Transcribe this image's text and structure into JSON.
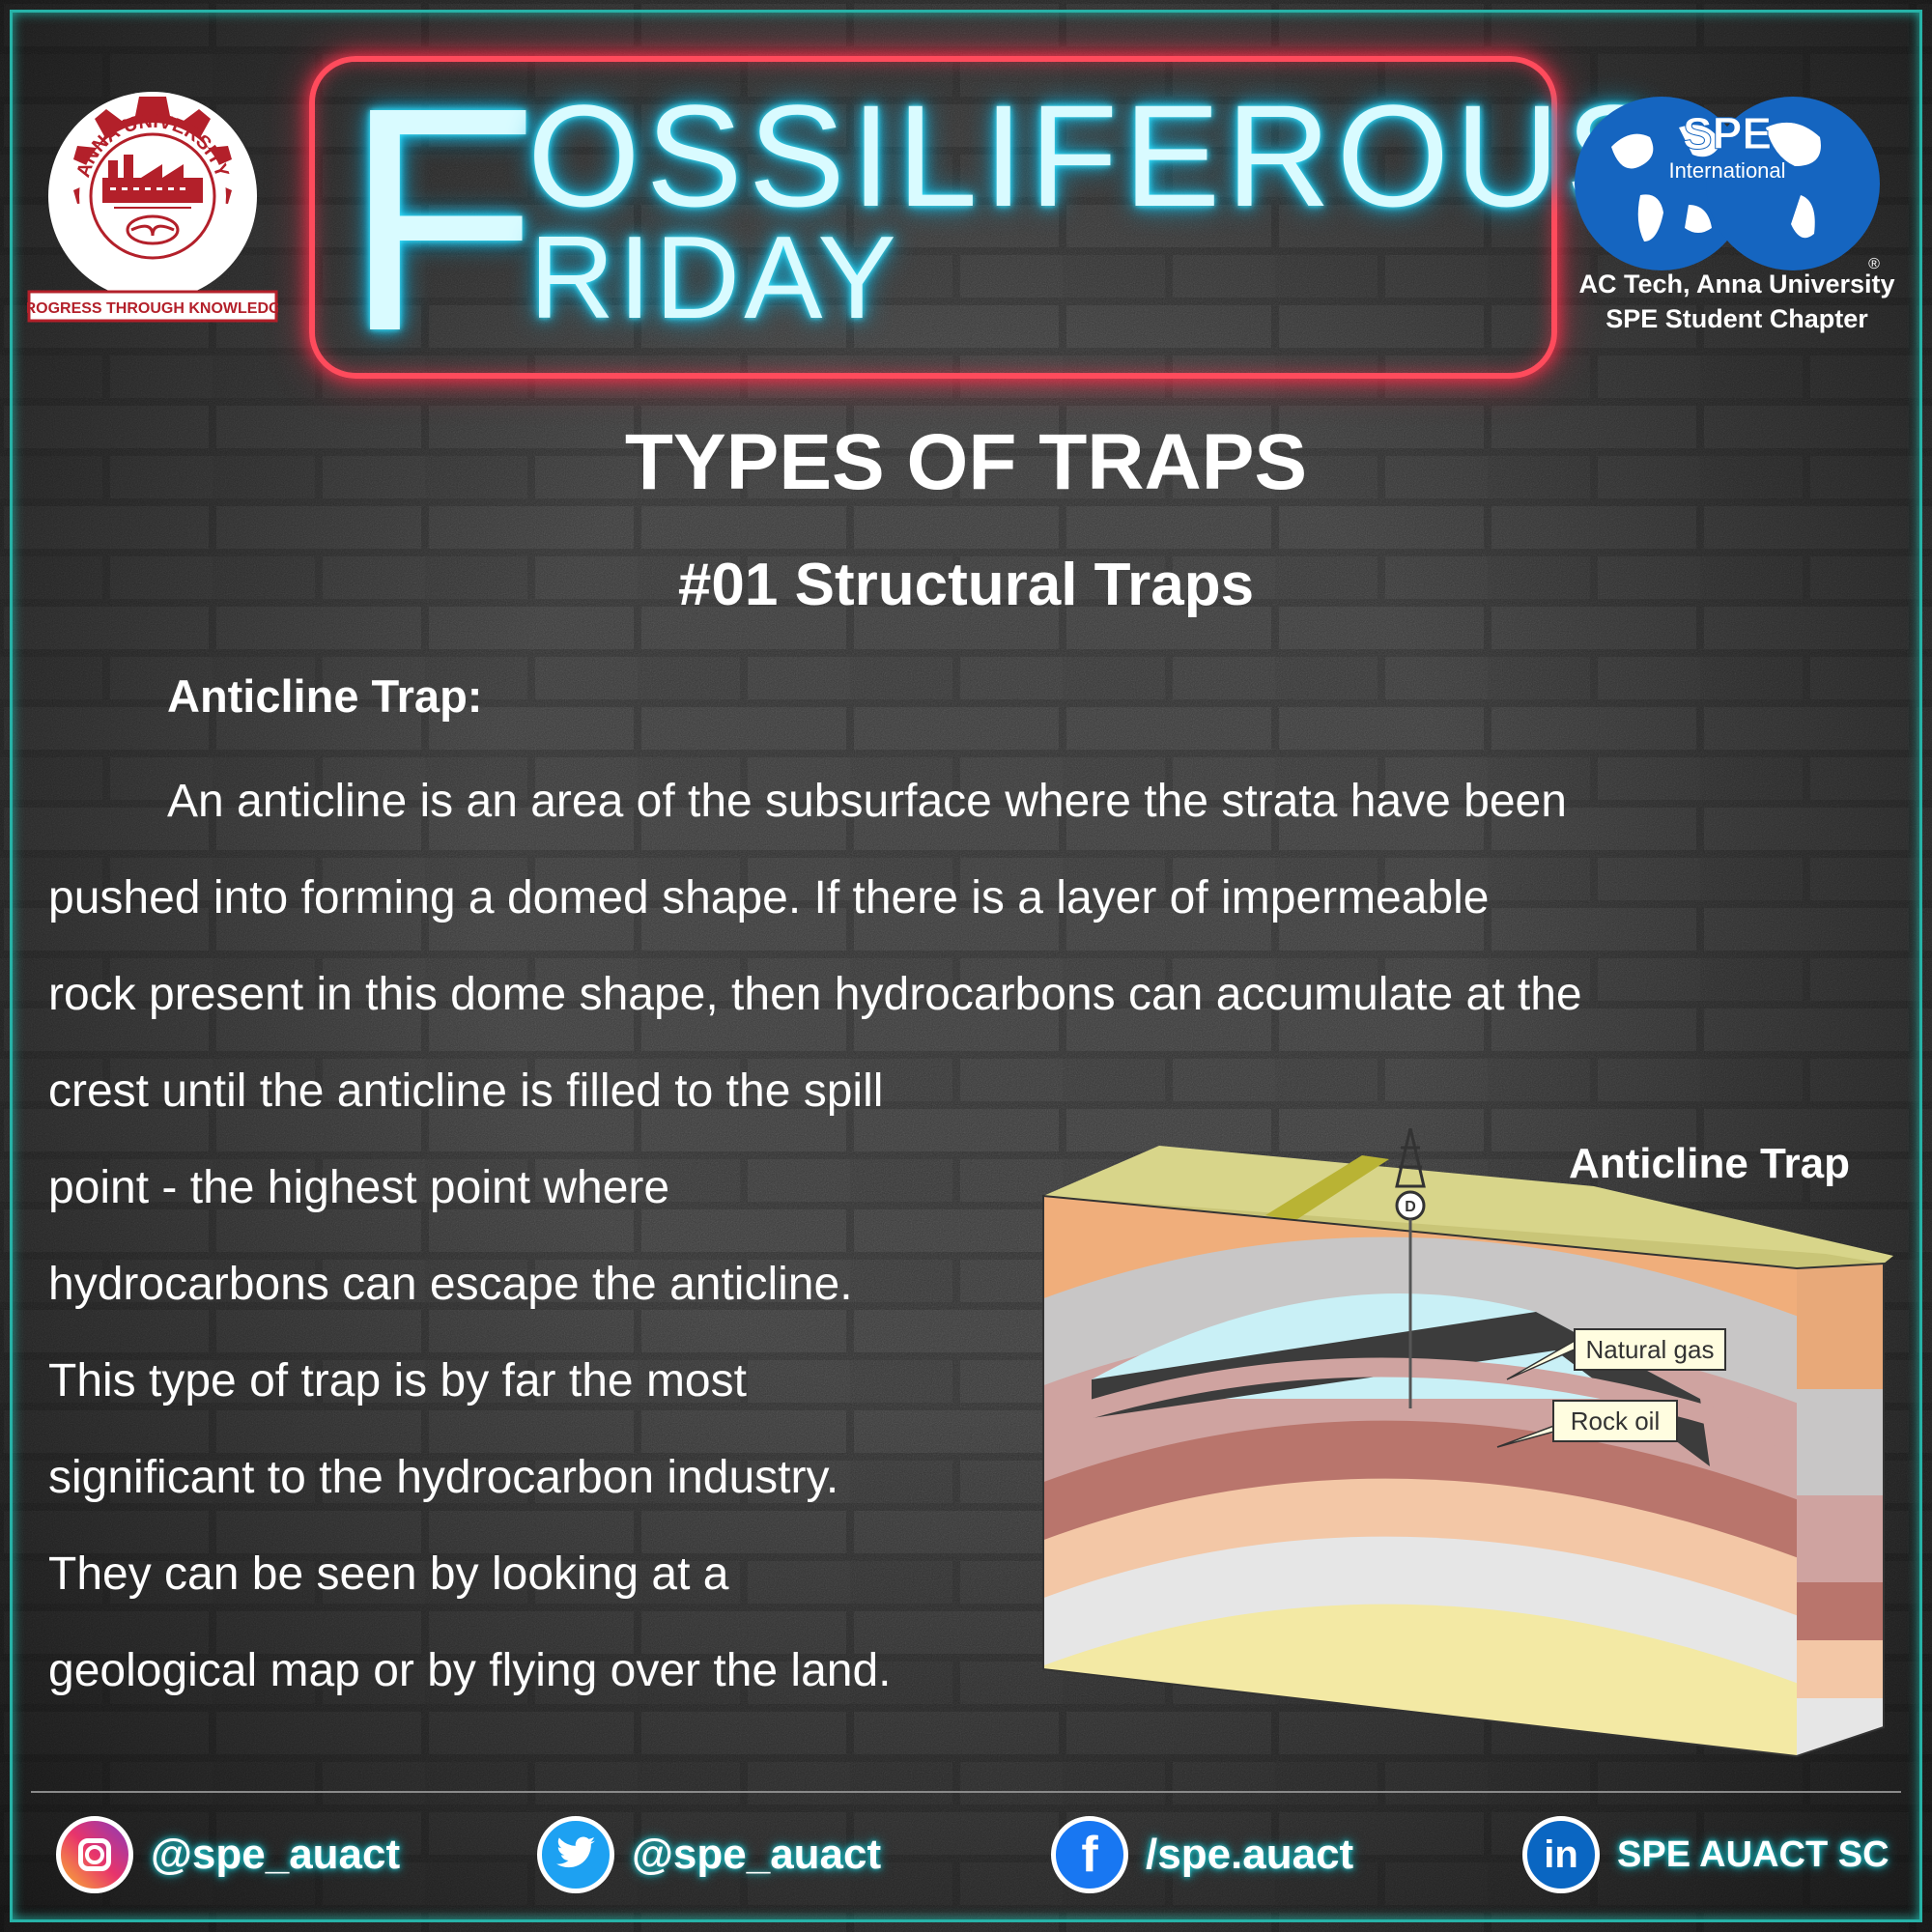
{
  "header": {
    "left_logo": {
      "arc_text": "ANNA UNIVERSITY",
      "banner_text": "PROGRESS THROUGH KNOWLEDGE"
    },
    "neon_title": {
      "big_letter": "F",
      "line1_rest": "OSSILIFEROUS",
      "line2_rest": "RIDAY"
    },
    "right_logo": {
      "name": "SPE",
      "sub": "International",
      "registered": "®",
      "caption_line1": "AC Tech, Anna University",
      "caption_line2": "SPE Student Chapter"
    }
  },
  "main": {
    "title": "TYPES OF TRAPS",
    "subtitle": "#01 Structural Traps",
    "section_heading": "Anticline Trap:",
    "paragraph_lines": [
      "An anticline is an area of the subsurface where the strata have been",
      "pushed into forming a domed shape. If there is a layer of impermeable",
      "rock present in this dome shape, then hydrocarbons can accumulate at the",
      "crest until the anticline is filled to the spill",
      "point - the highest point where",
      "hydrocarbons can escape the anticline.",
      "This type of trap is by far the most",
      "significant to the hydrocarbon industry.",
      "They can be seen by looking at a",
      "geological map or by flying over the land."
    ],
    "diagram": {
      "title": "Anticline Trap",
      "label_gas": "Natural gas",
      "label_oil": "Rock oil",
      "rig_letter": "D"
    }
  },
  "footer": {
    "instagram": "@spe_auact",
    "twitter": "@spe_auact",
    "facebook": "/spe.auact",
    "linkedin": "SPE AUACT SC"
  },
  "colors": {
    "frame": "#27b3a8",
    "neon_red": "#ff4b5c",
    "neon_cyan": "#3ee6ff",
    "spe_blue": "#1565c0",
    "au_maroon": "#b3202a"
  }
}
